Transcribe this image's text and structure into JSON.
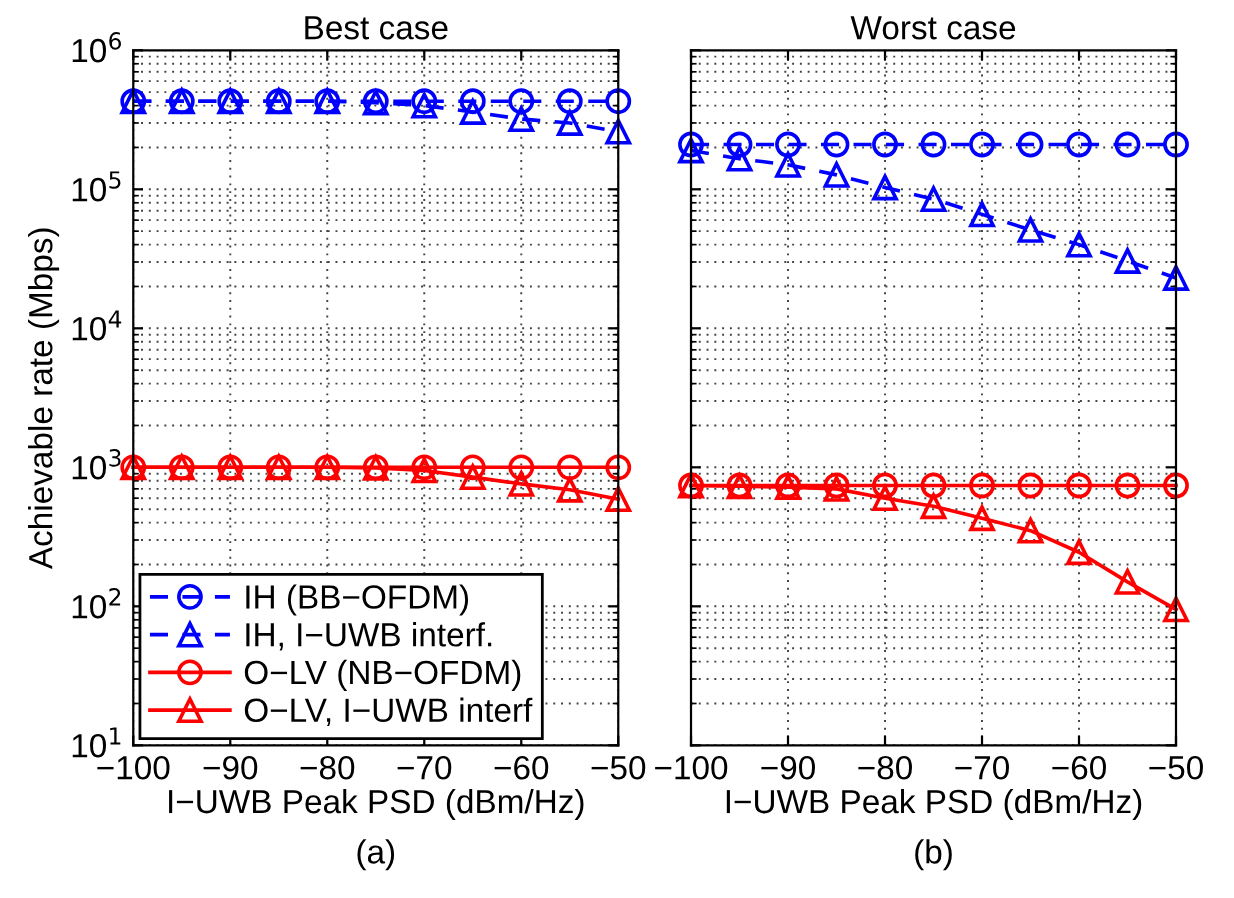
{
  "chart_data": [
    {
      "type": "line",
      "title": "Best case",
      "xlabel": "I−UWB Peak PSD (dBm/Hz)",
      "ylabel": "Achievable rate (Mbps)",
      "annotations": [
        "(a)"
      ],
      "x": [
        -100,
        -95,
        -90,
        -85,
        -80,
        -75,
        -70,
        -65,
        -60,
        -55,
        -50
      ],
      "xlim": [
        -100,
        -50
      ],
      "xticks": [
        {
          "value": -100,
          "label": "−100"
        },
        {
          "value": -90,
          "label": "−90"
        },
        {
          "value": -80,
          "label": "−80"
        },
        {
          "value": -70,
          "label": "−70"
        },
        {
          "value": -60,
          "label": "−60"
        },
        {
          "value": -50,
          "label": "−50"
        }
      ],
      "log": "y",
      "ylim": [
        10,
        1000000
      ],
      "yticks": [
        {
          "value": 10,
          "label": "10$^{1}$"
        },
        {
          "value": 100,
          "label": "10$^{2}$"
        },
        {
          "value": 1000,
          "label": "10$^{3}$"
        },
        {
          "value": 10000,
          "label": "10$^{4}$"
        },
        {
          "value": 100000,
          "label": "10$^{5}$"
        },
        {
          "value": 1000000,
          "label": "10$^{6}$"
        }
      ],
      "grid": true,
      "legend": "bottom left",
      "series": [
        {
          "name": "IH (BB−OFDM)",
          "color": "#0000ff",
          "marker": "circle",
          "line_style": "dashed",
          "values": [
            430000,
            430000,
            430000,
            430000,
            430000,
            430000,
            430000,
            430000,
            430000,
            430000,
            430000
          ]
        },
        {
          "name": "IH, I−UWB interf.",
          "color": "#0000ff",
          "marker": "triangle",
          "line_style": "dashed",
          "values": [
            430000,
            430000,
            430000,
            430000,
            430000,
            420000,
            400000,
            360000,
            320000,
            300000,
            260000
          ]
        },
        {
          "name": "O−LV (NB−OFDM)",
          "color": "#ff0000",
          "marker": "circle",
          "line_style": "solid",
          "values": [
            1000,
            1000,
            1000,
            1000,
            1000,
            1000,
            1000,
            1000,
            1000,
            1000,
            1000
          ]
        },
        {
          "name": "O−LV, I−UWB interf",
          "color": "#ff0000",
          "marker": "triangle",
          "line_style": "solid",
          "values": [
            1000,
            1000,
            1000,
            1000,
            1000,
            990,
            950,
            850,
            760,
            690,
            590
          ]
        }
      ]
    },
    {
      "type": "line",
      "title": "Worst case",
      "xlabel": "I−UWB Peak PSD (dBm/Hz)",
      "annotations": [
        "(b)"
      ],
      "x": [
        -100,
        -95,
        -90,
        -85,
        -80,
        -75,
        -70,
        -65,
        -60,
        -55,
        -50
      ],
      "xlim": [
        -100,
        -50
      ],
      "xticks": [
        {
          "value": -100,
          "label": "−100"
        },
        {
          "value": -90,
          "label": "−90"
        },
        {
          "value": -80,
          "label": "−80"
        },
        {
          "value": -70,
          "label": "−70"
        },
        {
          "value": -60,
          "label": "−60"
        },
        {
          "value": -50,
          "label": "−50"
        }
      ],
      "log": "y",
      "ylim": [
        10,
        1000000
      ],
      "yticks": [
        10,
        100,
        1000,
        10000,
        100000,
        1000000
      ],
      "tick_labels": "x",
      "grid": true,
      "legend": false,
      "series": [
        {
          "color": "#0000ff",
          "marker": "circle",
          "line_style": "dashed",
          "values": [
            210000,
            210000,
            210000,
            210000,
            210000,
            210000,
            210000,
            210000,
            210000,
            210000,
            210000
          ]
        },
        {
          "color": "#0000ff",
          "marker": "triangle",
          "line_style": "dashed",
          "values": [
            190000,
            166000,
            150000,
            127000,
            103000,
            85000,
            66000,
            51000,
            40000,
            30500,
            23000
          ]
        },
        {
          "color": "#ff0000",
          "marker": "circle",
          "line_style": "solid",
          "values": [
            740,
            740,
            740,
            740,
            740,
            740,
            740,
            740,
            740,
            740,
            740
          ]
        },
        {
          "color": "#ff0000",
          "marker": "triangle",
          "line_style": "solid",
          "values": [
            740,
            730,
            720,
            700,
            600,
            525,
            430,
            350,
            245,
            150,
            95
          ]
        }
      ]
    }
  ]
}
